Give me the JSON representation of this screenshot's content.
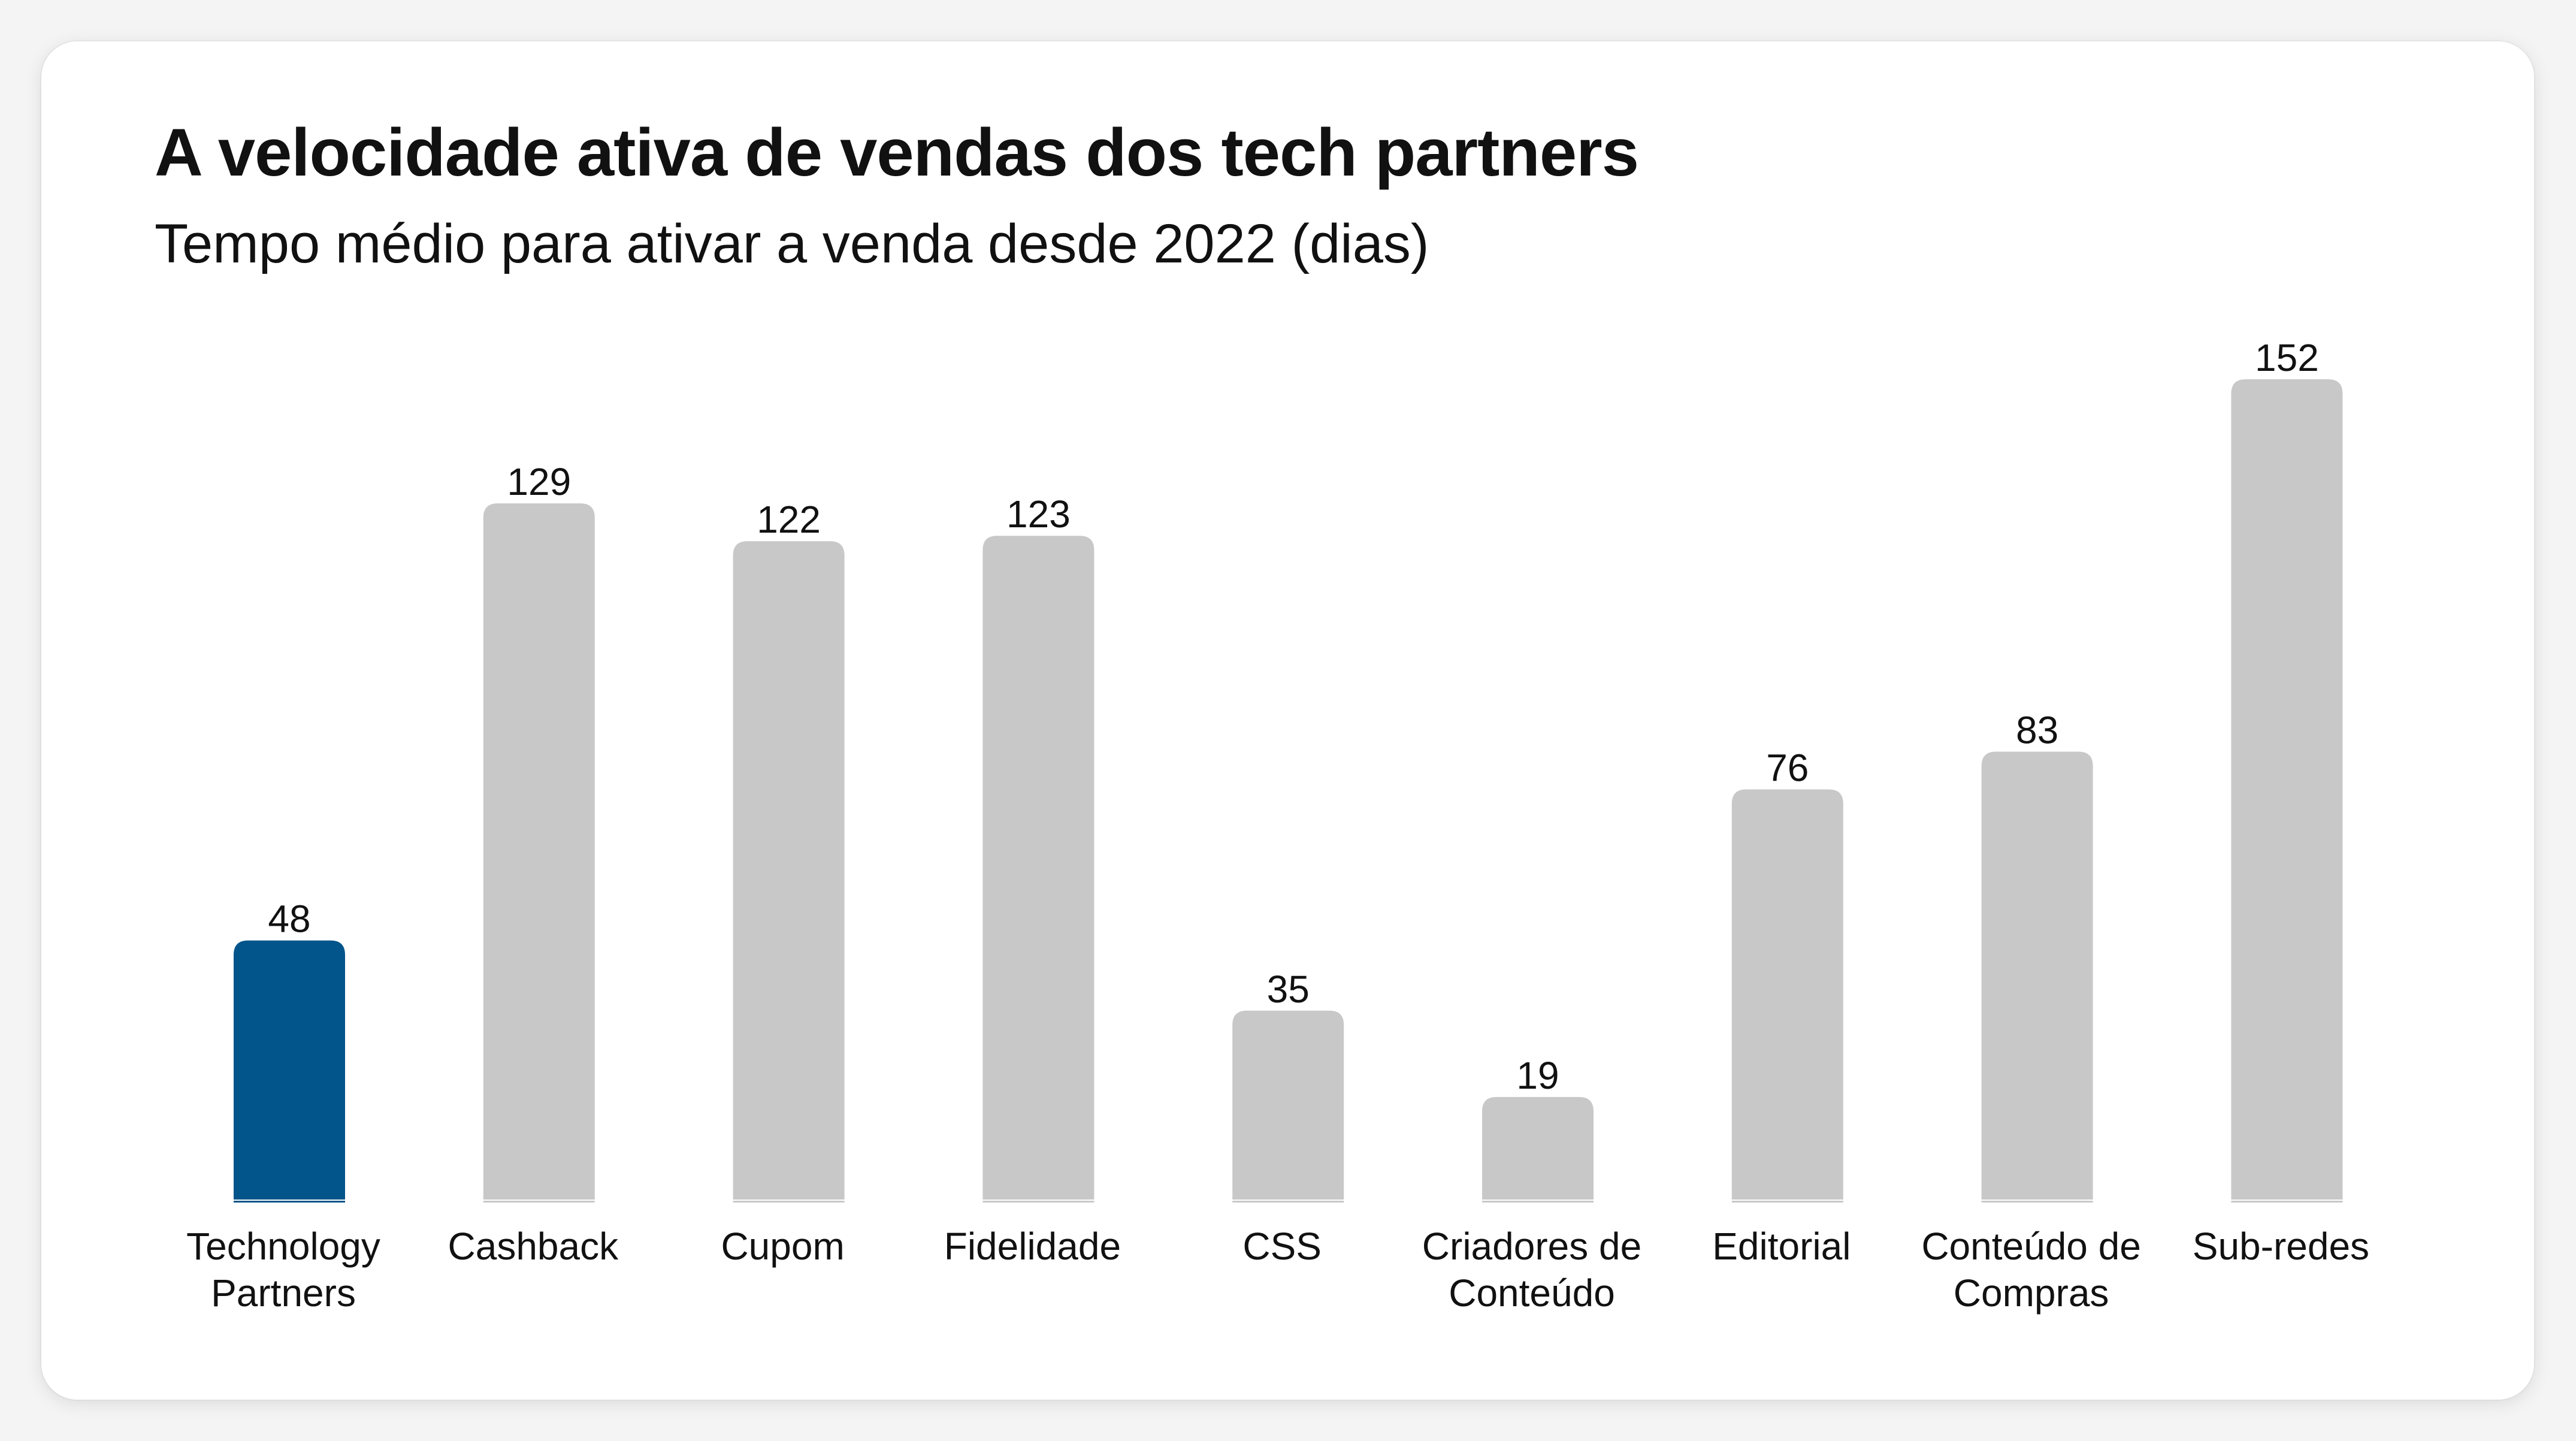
{
  "chart_data": {
    "type": "bar",
    "title": "A velocidade ativa de vendas dos tech partners",
    "subtitle": "Tempo médio para ativar a venda desde 2022 (dias)",
    "xlabel": "",
    "ylabel": "",
    "ylim": [
      0,
      152
    ],
    "grid": false,
    "categories": [
      [
        "Technology",
        "Partners"
      ],
      [
        "Cashback"
      ],
      [
        "Cupom"
      ],
      [
        "Fidelidade"
      ],
      [
        "CSS"
      ],
      [
        "Criadores de",
        "Conteúdo"
      ],
      [
        "Editorial"
      ],
      [
        "Conteúdo de",
        "Compras"
      ],
      [
        "Sub-redes"
      ]
    ],
    "values": [
      48,
      129,
      122,
      123,
      35,
      19,
      76,
      83,
      152
    ],
    "highlight_index": 0,
    "colors": {
      "highlight": "#02558a",
      "default": "#c8c8c8"
    }
  }
}
